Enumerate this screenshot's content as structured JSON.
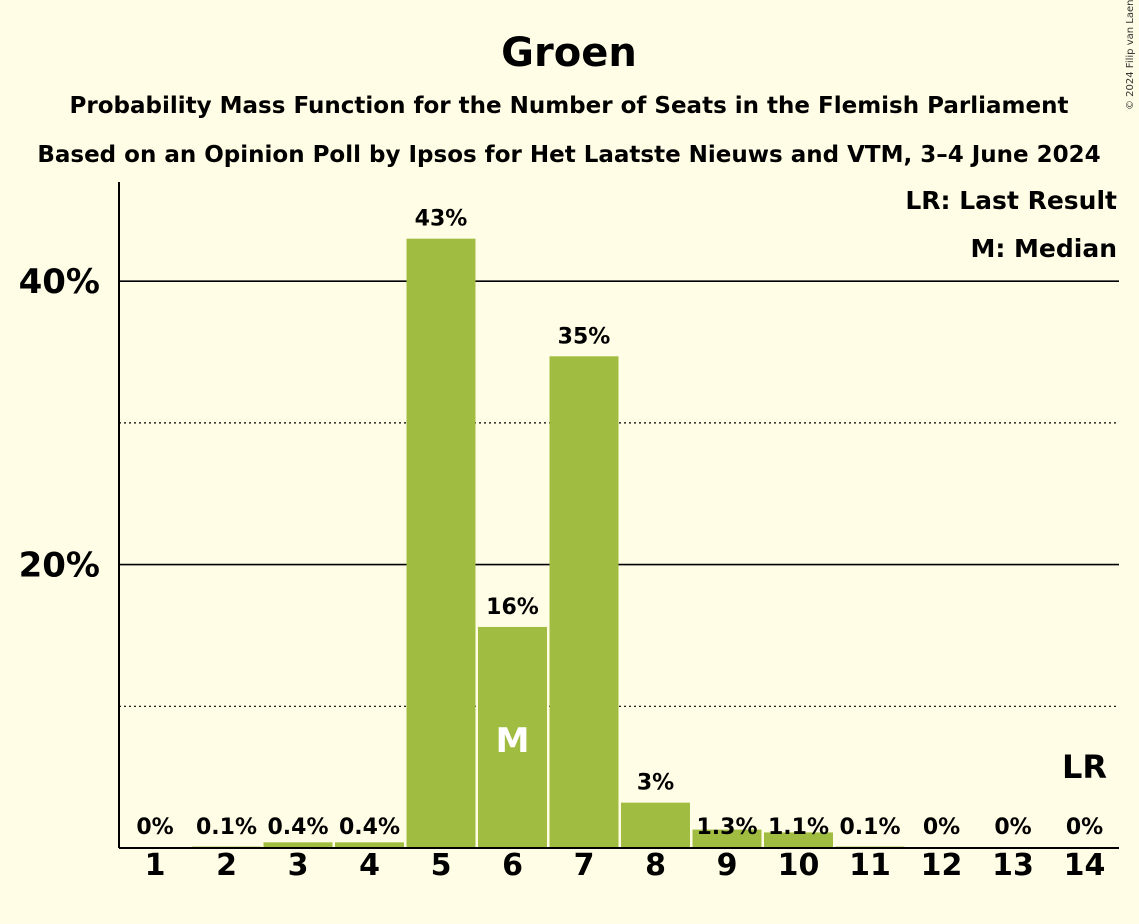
{
  "chart_data": {
    "type": "bar",
    "title": "Groen",
    "subtitle_1": "Probability Mass Function for the Number of Seats in the Flemish Parliament",
    "subtitle_2": "Based on an Opinion Poll by Ipsos for Het Laatste Nieuws and VTM, 3–4 June 2024",
    "copyright": "© 2024 Filip van Laenen",
    "categories": [
      "1",
      "2",
      "3",
      "4",
      "5",
      "6",
      "7",
      "8",
      "9",
      "10",
      "11",
      "12",
      "13",
      "14"
    ],
    "values": [
      0,
      0.1,
      0.4,
      0.4,
      43,
      15.6,
      34.7,
      3.2,
      1.3,
      1.1,
      0.1,
      0,
      0,
      0
    ],
    "value_labels": [
      "0%",
      "0.1%",
      "0.4%",
      "0.4%",
      "43%",
      "16%",
      "35%",
      "3%",
      "1.3%",
      "1.1%",
      "0.1%",
      "0%",
      "0%",
      "0%"
    ],
    "ylim": [
      0,
      47
    ],
    "yticks_major": [
      {
        "value": 20,
        "label": "20%"
      },
      {
        "value": 40,
        "label": "40%"
      }
    ],
    "yticks_minor": [
      10,
      30
    ],
    "bar_color": "#a1bd41",
    "median_category": "6",
    "median_marker": "M",
    "last_result_category": "14",
    "last_result_marker": "LR",
    "legend": [
      "LR: Last Result",
      "M: Median"
    ]
  }
}
